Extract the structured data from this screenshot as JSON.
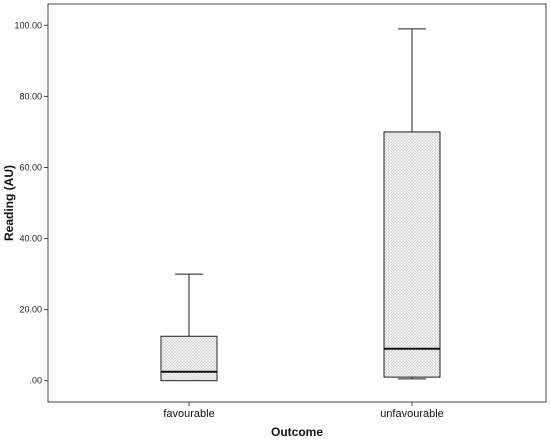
{
  "chart_data": {
    "type": "boxplot",
    "xlabel": "Outcome",
    "ylabel": "Reading (AU)",
    "ylim": [
      -6,
      106
    ],
    "yticks": [
      0,
      20,
      40,
      60,
      80,
      100
    ],
    "ytick_labels": [
      ".00",
      "20.00",
      "40.00",
      "60.00",
      "80.00",
      "100.00"
    ],
    "categories": [
      "favourable",
      "unfavourable"
    ],
    "boxes": [
      {
        "category": "favourable",
        "min": 0,
        "q1": 0,
        "median": 2.5,
        "q3": 12.5,
        "max": 30
      },
      {
        "category": "unfavourable",
        "min": 0.5,
        "q1": 1,
        "median": 9,
        "q3": 70,
        "max": 99
      }
    ],
    "grid": false,
    "legend": "none"
  }
}
